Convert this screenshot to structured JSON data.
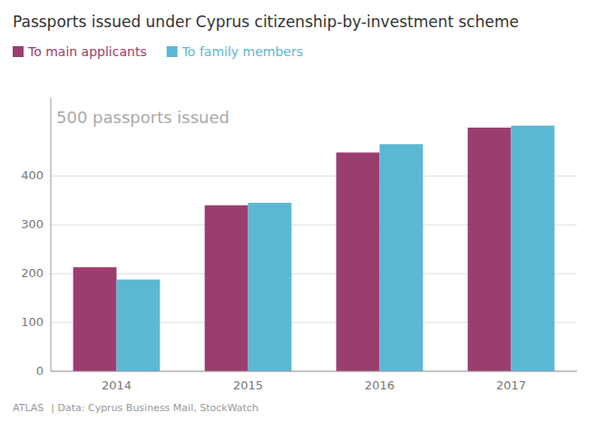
{
  "chart_data": {
    "type": "bar",
    "title": "Passports issued under Cyprus citizenship-by-investment scheme",
    "categories": [
      "2014",
      "2015",
      "2016",
      "2017"
    ],
    "series": [
      {
        "name": "To main applicants",
        "color": "#9b3d6e",
        "values": [
          213,
          340,
          448,
          499
        ]
      },
      {
        "name": "To family members",
        "color": "#5bb8d4",
        "values": [
          188,
          345,
          465,
          503
        ]
      }
    ],
    "ylim": [
      0,
      560
    ],
    "yticks": [
      0,
      100,
      200,
      300,
      400
    ],
    "grid": true,
    "legend": "top-left",
    "annotations": [
      {
        "text": "500 passports issued",
        "y": 500
      },
      {
        "text": "ATLAS"
      },
      {
        "text": "| Data: Cyprus Business Mail, StockWatch"
      }
    ]
  }
}
